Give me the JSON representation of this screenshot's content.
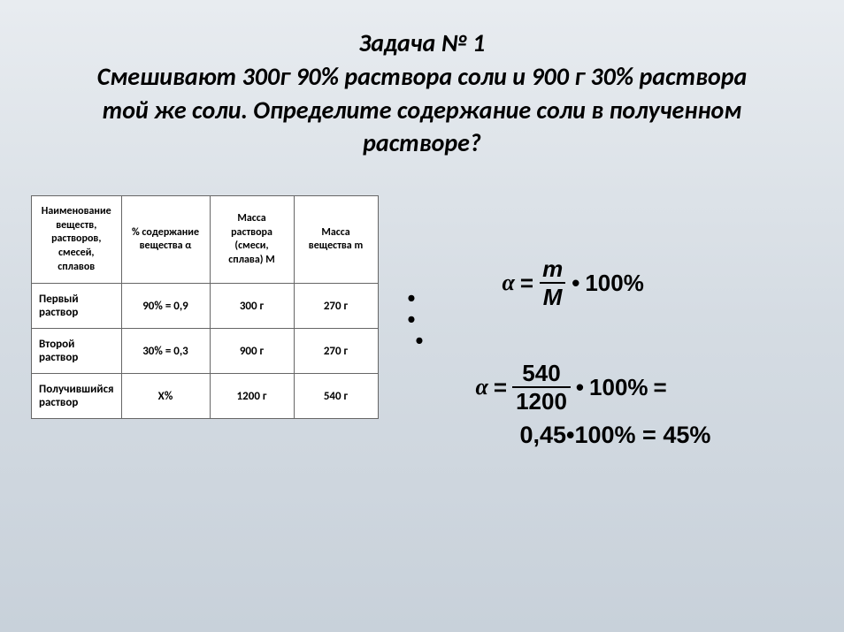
{
  "title": {
    "line1": "Задача № 1",
    "line2": "Смешивают 300г 90% раствора соли и 900 г 30% раствора",
    "line3": "той же соли. Определите содержание соли в полученном",
    "line4": "растворе?"
  },
  "table": {
    "headers": {
      "col1": "Наименование веществ, растворов, смесей, сплавов",
      "col2": "% содержание вещества α",
      "col3": "Масса раствора (смеси, сплава) М",
      "col4": "Масса вещества m"
    },
    "rows": [
      {
        "label": "Первый раствор",
        "percent": "90% = 0,9",
        "mass_solution": "300 г",
        "mass_substance": "270 г"
      },
      {
        "label": "Второй раствор",
        "percent": "30% = 0,3",
        "mass_solution": "900 г",
        "mass_substance": "270 г"
      },
      {
        "label": "Получившийся раствор",
        "percent": "Х%",
        "mass_solution": "1200 г",
        "mass_substance": "540 г"
      }
    ]
  },
  "formulas": {
    "alpha": "α",
    "equals": "=",
    "bullet": "•",
    "hundred": "100%",
    "frac1_num": "m",
    "frac1_den": "M",
    "frac2_num": "540",
    "frac2_den": "1200",
    "result": "0,45•100% = 45%"
  },
  "colors": {
    "background_start": "#e8ecf0",
    "background_end": "#c8d1da",
    "text": "#000000",
    "border": "#666666",
    "table_bg": "#ffffff"
  },
  "fonts": {
    "title_size": 28,
    "table_header_size": 12,
    "table_cell_size": 13,
    "formula_size": 26
  }
}
